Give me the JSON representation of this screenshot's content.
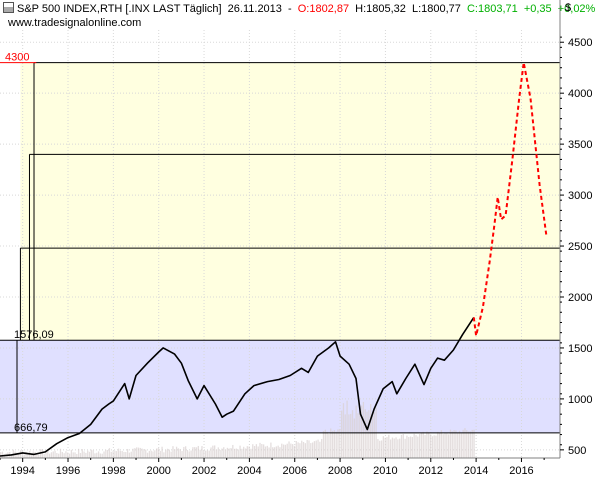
{
  "header": {
    "instrument": "S&P 500 INDEX,RTH [.INX LAST Täglich]",
    "date": "26.11.2013",
    "separator": "-",
    "open": "O:1802,87",
    "high": "H:1805,32",
    "low": "L:1800,77",
    "close": "C:1803,71",
    "change": "+0,35",
    "change_pct": "+0,02%",
    "website": "www.tradesignalonline.com",
    "currency": "$"
  },
  "colors": {
    "upper_zone": "#ffffe0",
    "lower_zone": "#e0e0ff",
    "price_line": "#000000",
    "forecast_line": "#ff0000",
    "label_red": "#ff0000",
    "volume": "#d8d0d0",
    "grid": "#d8d8d8"
  },
  "chart_data": {
    "type": "line",
    "title": "S&P 500 INDEX,RTH [.INX LAST Täglich]",
    "x_ticks": [
      "1994",
      "1996",
      "1998",
      "2000",
      "2002",
      "2004",
      "2006",
      "2008",
      "2010",
      "2012",
      "2014",
      "2016"
    ],
    "y_ticks": [
      "500",
      "1000",
      "1500",
      "2000",
      "2500",
      "3000",
      "3500",
      "4000",
      "4500"
    ],
    "xlim": [
      1993.0,
      2017.7
    ],
    "ylim": [
      420,
      4620
    ],
    "levels": [
      {
        "label": "4300",
        "value": 4300,
        "color": "red"
      },
      {
        "label": "1576,09",
        "value": 1576.09,
        "color": "black"
      },
      {
        "label": "666,79",
        "value": 666.79,
        "color": "black"
      }
    ],
    "zones": [
      {
        "name": "upper",
        "from": 1576.09,
        "to": 4300
      },
      {
        "name": "lower",
        "from": 666.79,
        "to": 1576.09
      }
    ],
    "box_edges": [
      {
        "value": 3400,
        "start_year": 1994.3
      },
      {
        "value": 2480,
        "start_year": 1993.9
      },
      {
        "value": 4300,
        "start_year": 1994.5
      }
    ],
    "series": [
      {
        "type": "price",
        "x": [
          1993.0,
          1993.5,
          1994.0,
          1994.5,
          1995.0,
          1995.5,
          1996.0,
          1996.5,
          1997.0,
          1997.5,
          1997.8,
          1998.0,
          1998.5,
          1998.7,
          1999.0,
          1999.5,
          2000.0,
          2000.2,
          2000.7,
          2001.0,
          2001.3,
          2001.7,
          2002.0,
          2002.5,
          2002.8,
          2003.0,
          2003.3,
          2003.8,
          2004.2,
          2004.8,
          2005.3,
          2005.8,
          2006.3,
          2006.6,
          2007.0,
          2007.5,
          2007.8,
          2008.0,
          2008.4,
          2008.7,
          2008.9,
          2009.2,
          2009.5,
          2009.9,
          2010.3,
          2010.5,
          2010.9,
          2011.3,
          2011.7,
          2012.0,
          2012.3,
          2012.6,
          2013.0,
          2013.4,
          2013.9
        ],
        "y": [
          440,
          450,
          470,
          455,
          480,
          560,
          620,
          660,
          750,
          900,
          950,
          980,
          1150,
          1000,
          1230,
          1350,
          1460,
          1500,
          1440,
          1350,
          1180,
          1000,
          1130,
          950,
          820,
          850,
          880,
          1050,
          1130,
          1170,
          1190,
          1230,
          1300,
          1260,
          1420,
          1500,
          1560,
          1420,
          1340,
          1200,
          850,
          700,
          900,
          1100,
          1170,
          1050,
          1200,
          1340,
          1140,
          1300,
          1400,
          1380,
          1480,
          1630,
          1800
        ]
      },
      {
        "type": "forecast",
        "x": [
          2013.9,
          2014.0,
          2014.3,
          2014.6,
          2014.8,
          2014.95,
          2015.1,
          2015.3,
          2015.6,
          2015.9,
          2016.1,
          2016.4,
          2016.8,
          2017.1
        ],
        "y": [
          1800,
          1620,
          1900,
          2350,
          2700,
          2980,
          2760,
          2800,
          3350,
          3950,
          4300,
          3950,
          3100,
          2600
        ]
      }
    ]
  }
}
